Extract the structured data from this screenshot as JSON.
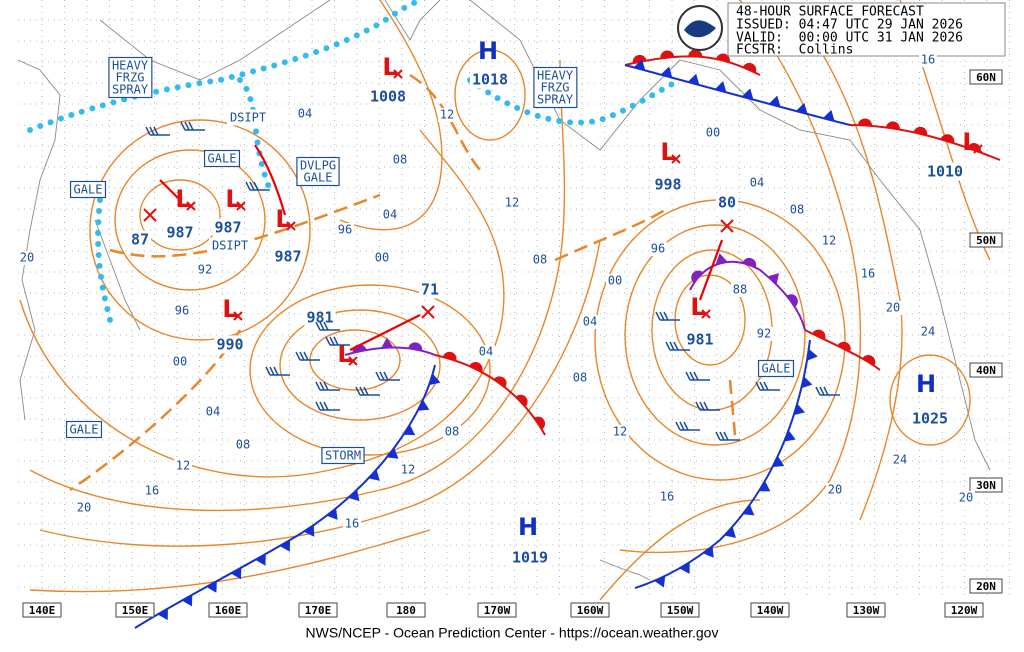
{
  "header": {
    "title": "48-HOUR SURFACE FORECAST",
    "issued": "ISSUED: 04:47 UTC 29 JAN 2026",
    "valid": "VALID:  00:00 UTC 31 JAN 2026",
    "forecaster": "FCSTR:  Collins"
  },
  "longitude_labels": [
    "140E",
    "150E",
    "160E",
    "170E",
    "180",
    "170W",
    "160W",
    "150W",
    "140W",
    "130W",
    "120W"
  ],
  "latitude_labels": [
    "60N",
    "50N",
    "40N",
    "30N",
    "20N"
  ],
  "pressure_centers": [
    {
      "symbol": "H",
      "pressure": "1018"
    },
    {
      "symbol": "L",
      "pressure": "1008"
    },
    {
      "symbol": "L",
      "pressure": "998"
    },
    {
      "symbol": "L",
      "pressure": "1010"
    },
    {
      "pressure": "80"
    },
    {
      "symbol": "L",
      "pressure": "987"
    },
    {
      "symbol": "L",
      "pressure": "987"
    },
    {
      "symbol": "L",
      "pressure": "987"
    },
    {
      "pressure": "87"
    },
    {
      "symbol": "L",
      "pressure": "990"
    },
    {
      "symbol": "L",
      "pressure": "981"
    },
    {
      "pressure": "71"
    },
    {
      "symbol": "L",
      "pressure": "981"
    },
    {
      "symbol": "H",
      "pressure": "1025"
    },
    {
      "symbol": "H",
      "pressure": "1019"
    }
  ],
  "area_labels": [
    {
      "lines": [
        "HEAVY",
        "FRZG",
        "SPRAY"
      ]
    },
    {
      "lines": [
        "HEAVY",
        "FRZG",
        "SPRAY"
      ]
    },
    {
      "lines": [
        "GALE"
      ]
    },
    {
      "lines": [
        "GALE"
      ]
    },
    {
      "lines": [
        "GALE"
      ]
    },
    {
      "lines": [
        "GALE"
      ]
    },
    {
      "lines": [
        "DSIPT"
      ]
    },
    {
      "lines": [
        "DSIPT"
      ]
    },
    {
      "lines": [
        "DVLPG",
        "GALE"
      ]
    },
    {
      "lines": [
        "STORM"
      ]
    }
  ],
  "isobar_labels": [
    "04",
    "08",
    "12",
    "04",
    "96",
    "00",
    "92",
    "96",
    "00",
    "04",
    "08",
    "12",
    "16",
    "20",
    "20",
    "12",
    "08",
    "04",
    "08",
    "12",
    "16",
    "00",
    "04",
    "08",
    "12",
    "16",
    "20",
    "24",
    "96",
    "00",
    "04",
    "08",
    "12",
    "16",
    "20",
    "24",
    "20",
    "88",
    "92",
    "16"
  ],
  "footer": "NWS/NCEP - Ocean Prediction Center - https://ocean.weather.gov"
}
